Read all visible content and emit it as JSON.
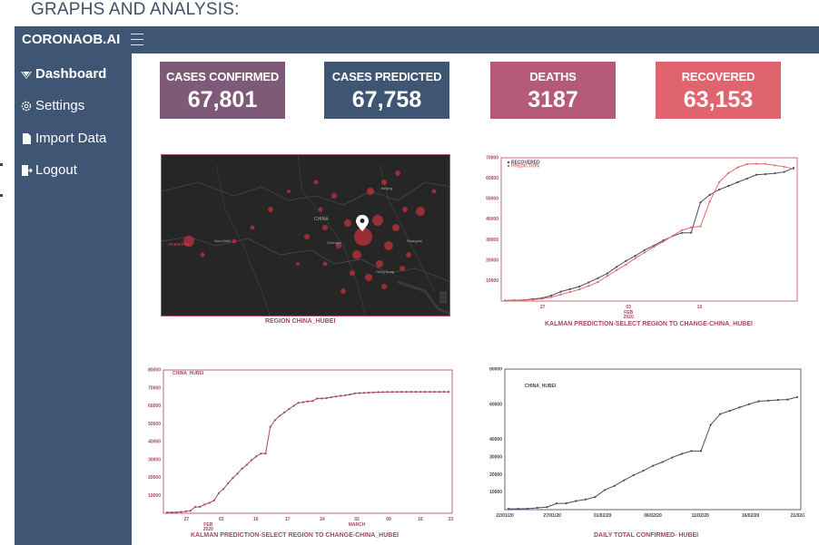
{
  "page_heading": "GRAPHS AND ANALYSIS:",
  "brand": "CORONAOB.AI",
  "sidebar": {
    "items": [
      {
        "label": "Dashboard",
        "icon": "dashboard-icon"
      },
      {
        "label": "Settings",
        "icon": "gear-icon"
      },
      {
        "label": "Import Data",
        "icon": "file-icon"
      },
      {
        "label": "Logout",
        "icon": "logout-icon"
      }
    ]
  },
  "cards": [
    {
      "label": "CASES CONFIRMED",
      "value": "67,801",
      "color": "#7c5a78"
    },
    {
      "label": "CASES PREDICTED",
      "value": "67,758",
      "color": "#3e5673"
    },
    {
      "label": "DEATHS",
      "value": "3187",
      "color": "#b45a78"
    },
    {
      "label": "RECOVERED",
      "value": "63,153",
      "color": "#e0646e"
    }
  ],
  "map": {
    "caption": "REGION CHINA_HUBEI",
    "labels": [
      "PAKISTAN",
      "CHINA",
      "New Delhi",
      "Chengdu",
      "Beijing",
      "Shanghai",
      "Hong Kong"
    ],
    "marker_icon": "map-pin-icon"
  },
  "chart_data": [
    {
      "type": "line",
      "caption": "KALMAN PREDICTION-SELECT REGION TO CHANGE-CHINA_HUBEI",
      "ylim": [
        0,
        70000
      ],
      "yticks": [
        "70000",
        "60000",
        "50000",
        "40000",
        "30000",
        "20000",
        "10000"
      ],
      "xticks": [
        "27",
        "03",
        "10"
      ],
      "xsub": "FEB\n2020",
      "series": [
        {
          "name": "RECOVERED",
          "color": "#4a4a63",
          "values": [
            270,
            400,
            580,
            1000,
            1500,
            2700,
            4600,
            5800,
            7100,
            9100,
            11200,
            13500,
            16700,
            19600,
            22100,
            24900,
            27100,
            29600,
            31700,
            33300,
            33400,
            48200,
            51900,
            54400,
            56200,
            58100,
            59800,
            61700,
            62000,
            62400,
            63100,
            65100
          ]
        },
        {
          "name": "PREDICTION",
          "color": "#e86868",
          "values": [
            200,
            330,
            470,
            700,
            1100,
            1900,
            3200,
            4400,
            5700,
            7400,
            9300,
            12300,
            15100,
            17800,
            20900,
            23700,
            26500,
            29000,
            31800,
            34600,
            36000,
            36500,
            48600,
            58000,
            62500,
            65300,
            66900,
            67100,
            67000,
            66300,
            65600,
            64600
          ]
        }
      ]
    },
    {
      "type": "line",
      "caption": "KALMAN PREDICTION-SELECT REGION TO CHANGE-CHINA_HUBEI",
      "legend": "CHINA_HUBEI",
      "ylim": [
        0,
        80000
      ],
      "yticks": [
        "80000",
        "70000",
        "60000",
        "50000",
        "40000",
        "30000",
        "20000",
        "10000"
      ],
      "xticks": [
        "27",
        "03",
        "10",
        "17",
        "24",
        "02",
        "09",
        "16",
        "23"
      ],
      "xsub_feb": "FEB\n2020",
      "xsub_march": "MARCH",
      "series": [
        {
          "name": "CHINA_HUBEI",
          "color": "#a6475d",
          "values": [
            444,
            444,
            549,
            761,
            1058,
            1423,
            3554,
            3554,
            4903,
            5806,
            7153,
            11177,
            13522,
            16678,
            19665,
            22112,
            24953,
            27100,
            29631,
            31728,
            33366,
            33366,
            48206,
            51986,
            54406,
            56249,
            58182,
            59989,
            61682,
            62031,
            62442,
            62662,
            64084,
            64084,
            64287,
            64786,
            65187,
            65596,
            65914,
            66337,
            66907,
            67103,
            67217,
            67332,
            67466,
            67592,
            67666,
            67707,
            67743,
            67760,
            67773,
            67781,
            67786,
            67790,
            67794,
            67798,
            67799,
            67800,
            67800,
            67800,
            67801
          ]
        }
      ]
    },
    {
      "type": "line",
      "caption": "DAILY TOTAL CONFIRMED- HUBEI",
      "legend": "CHINA_HUBEI",
      "ylim": [
        0,
        80000
      ],
      "yticks": [
        "80000",
        "60000",
        "40000",
        "30000",
        "20000",
        "10000"
      ],
      "xticks": [
        "22/01/20",
        "27/01/20",
        "01/02/20",
        "06/02/20",
        "11/02/20",
        "16/02/20",
        "21/02/20"
      ],
      "series": [
        {
          "name": "CHINA_HUBEI",
          "color": "#4a4a63",
          "values": [
            444,
            444,
            549,
            1058,
            1423,
            3554,
            3554,
            4903,
            5806,
            7153,
            11177,
            13522,
            16678,
            19665,
            22112,
            24953,
            27100,
            29631,
            31728,
            33366,
            33366,
            48206,
            54406,
            56249,
            58182,
            59989,
            61682,
            62031,
            62442,
            62662,
            64084
          ]
        }
      ]
    }
  ]
}
